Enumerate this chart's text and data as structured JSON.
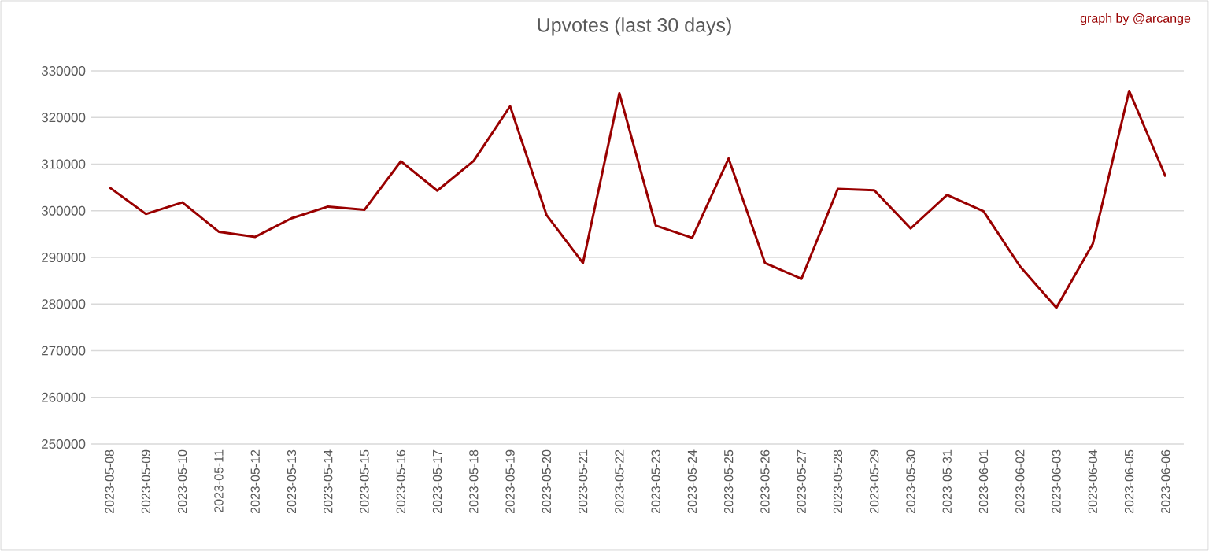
{
  "chart_data": {
    "type": "line",
    "title": "Upvotes (last 30 days)",
    "annotations": [
      "graph by @arcange"
    ],
    "categories": [
      "2023-05-08",
      "2023-05-09",
      "2023-05-10",
      "2023-05-11",
      "2023-05-12",
      "2023-05-13",
      "2023-05-14",
      "2023-05-15",
      "2023-05-16",
      "2023-05-17",
      "2023-05-18",
      "2023-05-19",
      "2023-05-20",
      "2023-05-21",
      "2023-05-22",
      "2023-05-23",
      "2023-05-24",
      "2023-05-25",
      "2023-05-26",
      "2023-05-27",
      "2023-05-28",
      "2023-05-29",
      "2023-05-30",
      "2023-05-31",
      "2023-06-01",
      "2023-06-02",
      "2023-06-03",
      "2023-06-04",
      "2023-06-05",
      "2023-06-06"
    ],
    "series": [
      {
        "color": "#990000",
        "values": [
          305000,
          299300,
          301800,
          295500,
          294400,
          298400,
          300900,
          300200,
          310600,
          304300,
          310700,
          322400,
          299100,
          288800,
          325200,
          296800,
          294200,
          311200,
          288800,
          285400,
          304700,
          304400,
          296200,
          303400,
          299900,
          288100,
          279200,
          292900,
          325700,
          307300
        ]
      }
    ],
    "ylim": [
      250000,
      330000
    ],
    "yticks": [
      250000,
      260000,
      270000,
      280000,
      290000,
      300000,
      310000,
      320000,
      330000
    ],
    "grid": "y",
    "marker": "none",
    "line_style": "solid"
  }
}
